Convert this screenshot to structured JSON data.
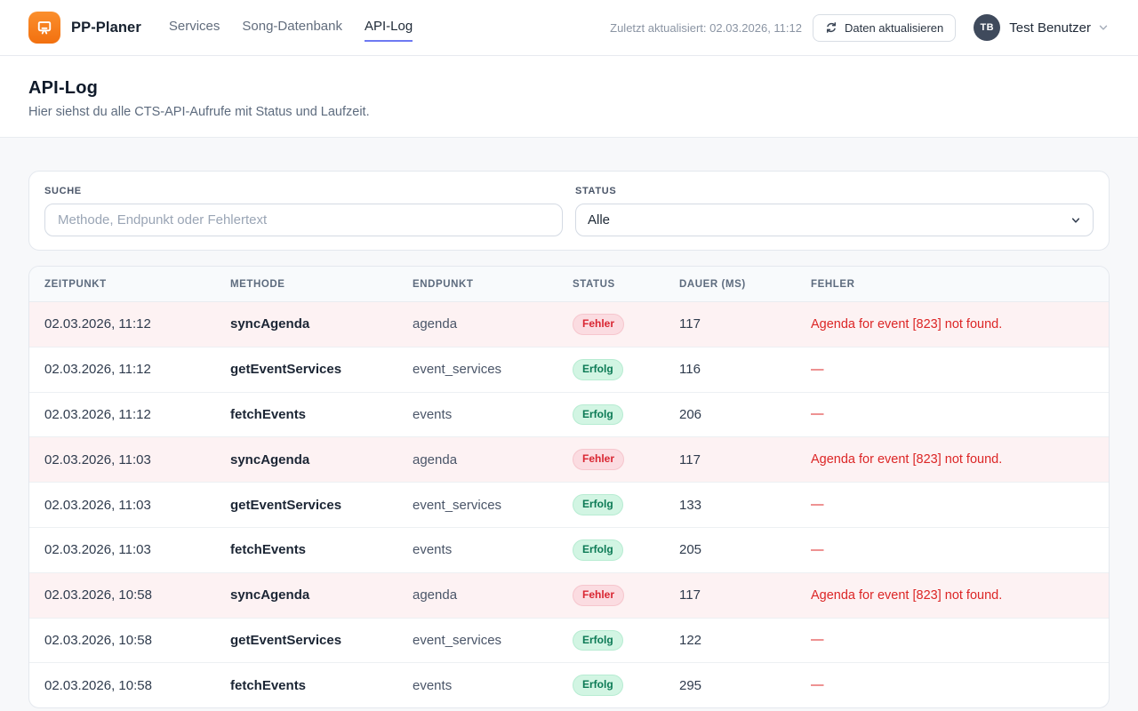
{
  "header": {
    "brand": "PP-Planer",
    "nav": [
      {
        "label": "Services",
        "active": false
      },
      {
        "label": "Song-Datenbank",
        "active": false
      },
      {
        "label": "API-Log",
        "active": true
      }
    ],
    "last_updated": "Zuletzt aktualisiert: 02.03.2026, 11:12",
    "refresh_label": "Daten aktualisieren",
    "user": {
      "initials": "TB",
      "name": "Test Benutzer"
    }
  },
  "page": {
    "title": "API-Log",
    "subtitle": "Hier siehst du alle CTS-API-Aufrufe mit Status und Laufzeit."
  },
  "filters": {
    "search": {
      "label": "SUCHE",
      "placeholder": "Methode, Endpunkt oder Fehlertext",
      "value": ""
    },
    "status": {
      "label": "STATUS",
      "selected": "Alle"
    }
  },
  "table": {
    "columns": [
      "ZEITPUNKT",
      "METHODE",
      "ENDPUNKT",
      "STATUS",
      "DAUER (MS)",
      "FEHLER"
    ],
    "rows": [
      {
        "zeitpunkt": "02.03.2026, 11:12",
        "methode": "syncAgenda",
        "endpunkt": "agenda",
        "status": "Fehler",
        "status_type": "error",
        "dauer": "117",
        "fehler": "Agenda for event [823] not found."
      },
      {
        "zeitpunkt": "02.03.2026, 11:12",
        "methode": "getEventServices",
        "endpunkt": "event_services",
        "status": "Erfolg",
        "status_type": "success",
        "dauer": "116",
        "fehler": "—"
      },
      {
        "zeitpunkt": "02.03.2026, 11:12",
        "methode": "fetchEvents",
        "endpunkt": "events",
        "status": "Erfolg",
        "status_type": "success",
        "dauer": "206",
        "fehler": "—"
      },
      {
        "zeitpunkt": "02.03.2026, 11:03",
        "methode": "syncAgenda",
        "endpunkt": "agenda",
        "status": "Fehler",
        "status_type": "error",
        "dauer": "117",
        "fehler": "Agenda for event [823] not found."
      },
      {
        "zeitpunkt": "02.03.2026, 11:03",
        "methode": "getEventServices",
        "endpunkt": "event_services",
        "status": "Erfolg",
        "status_type": "success",
        "dauer": "133",
        "fehler": "—"
      },
      {
        "zeitpunkt": "02.03.2026, 11:03",
        "methode": "fetchEvents",
        "endpunkt": "events",
        "status": "Erfolg",
        "status_type": "success",
        "dauer": "205",
        "fehler": "—"
      },
      {
        "zeitpunkt": "02.03.2026, 10:58",
        "methode": "syncAgenda",
        "endpunkt": "agenda",
        "status": "Fehler",
        "status_type": "error",
        "dauer": "117",
        "fehler": "Agenda for event [823] not found."
      },
      {
        "zeitpunkt": "02.03.2026, 10:58",
        "methode": "getEventServices",
        "endpunkt": "event_services",
        "status": "Erfolg",
        "status_type": "success",
        "dauer": "122",
        "fehler": "—"
      },
      {
        "zeitpunkt": "02.03.2026, 10:58",
        "methode": "fetchEvents",
        "endpunkt": "events",
        "status": "Erfolg",
        "status_type": "success",
        "dauer": "295",
        "fehler": "—"
      }
    ]
  },
  "colors": {
    "brand_orange": "#f97316",
    "accent_indigo": "#6d79f2",
    "error_red": "#dc2626",
    "error_row_bg": "#fdf2f3",
    "error_badge_bg": "#fbdce1",
    "success_green": "#0c7a55",
    "success_badge_bg": "#d2f5e3",
    "header_bg": "#ffffff",
    "page_bg": "#f7f8fa"
  }
}
